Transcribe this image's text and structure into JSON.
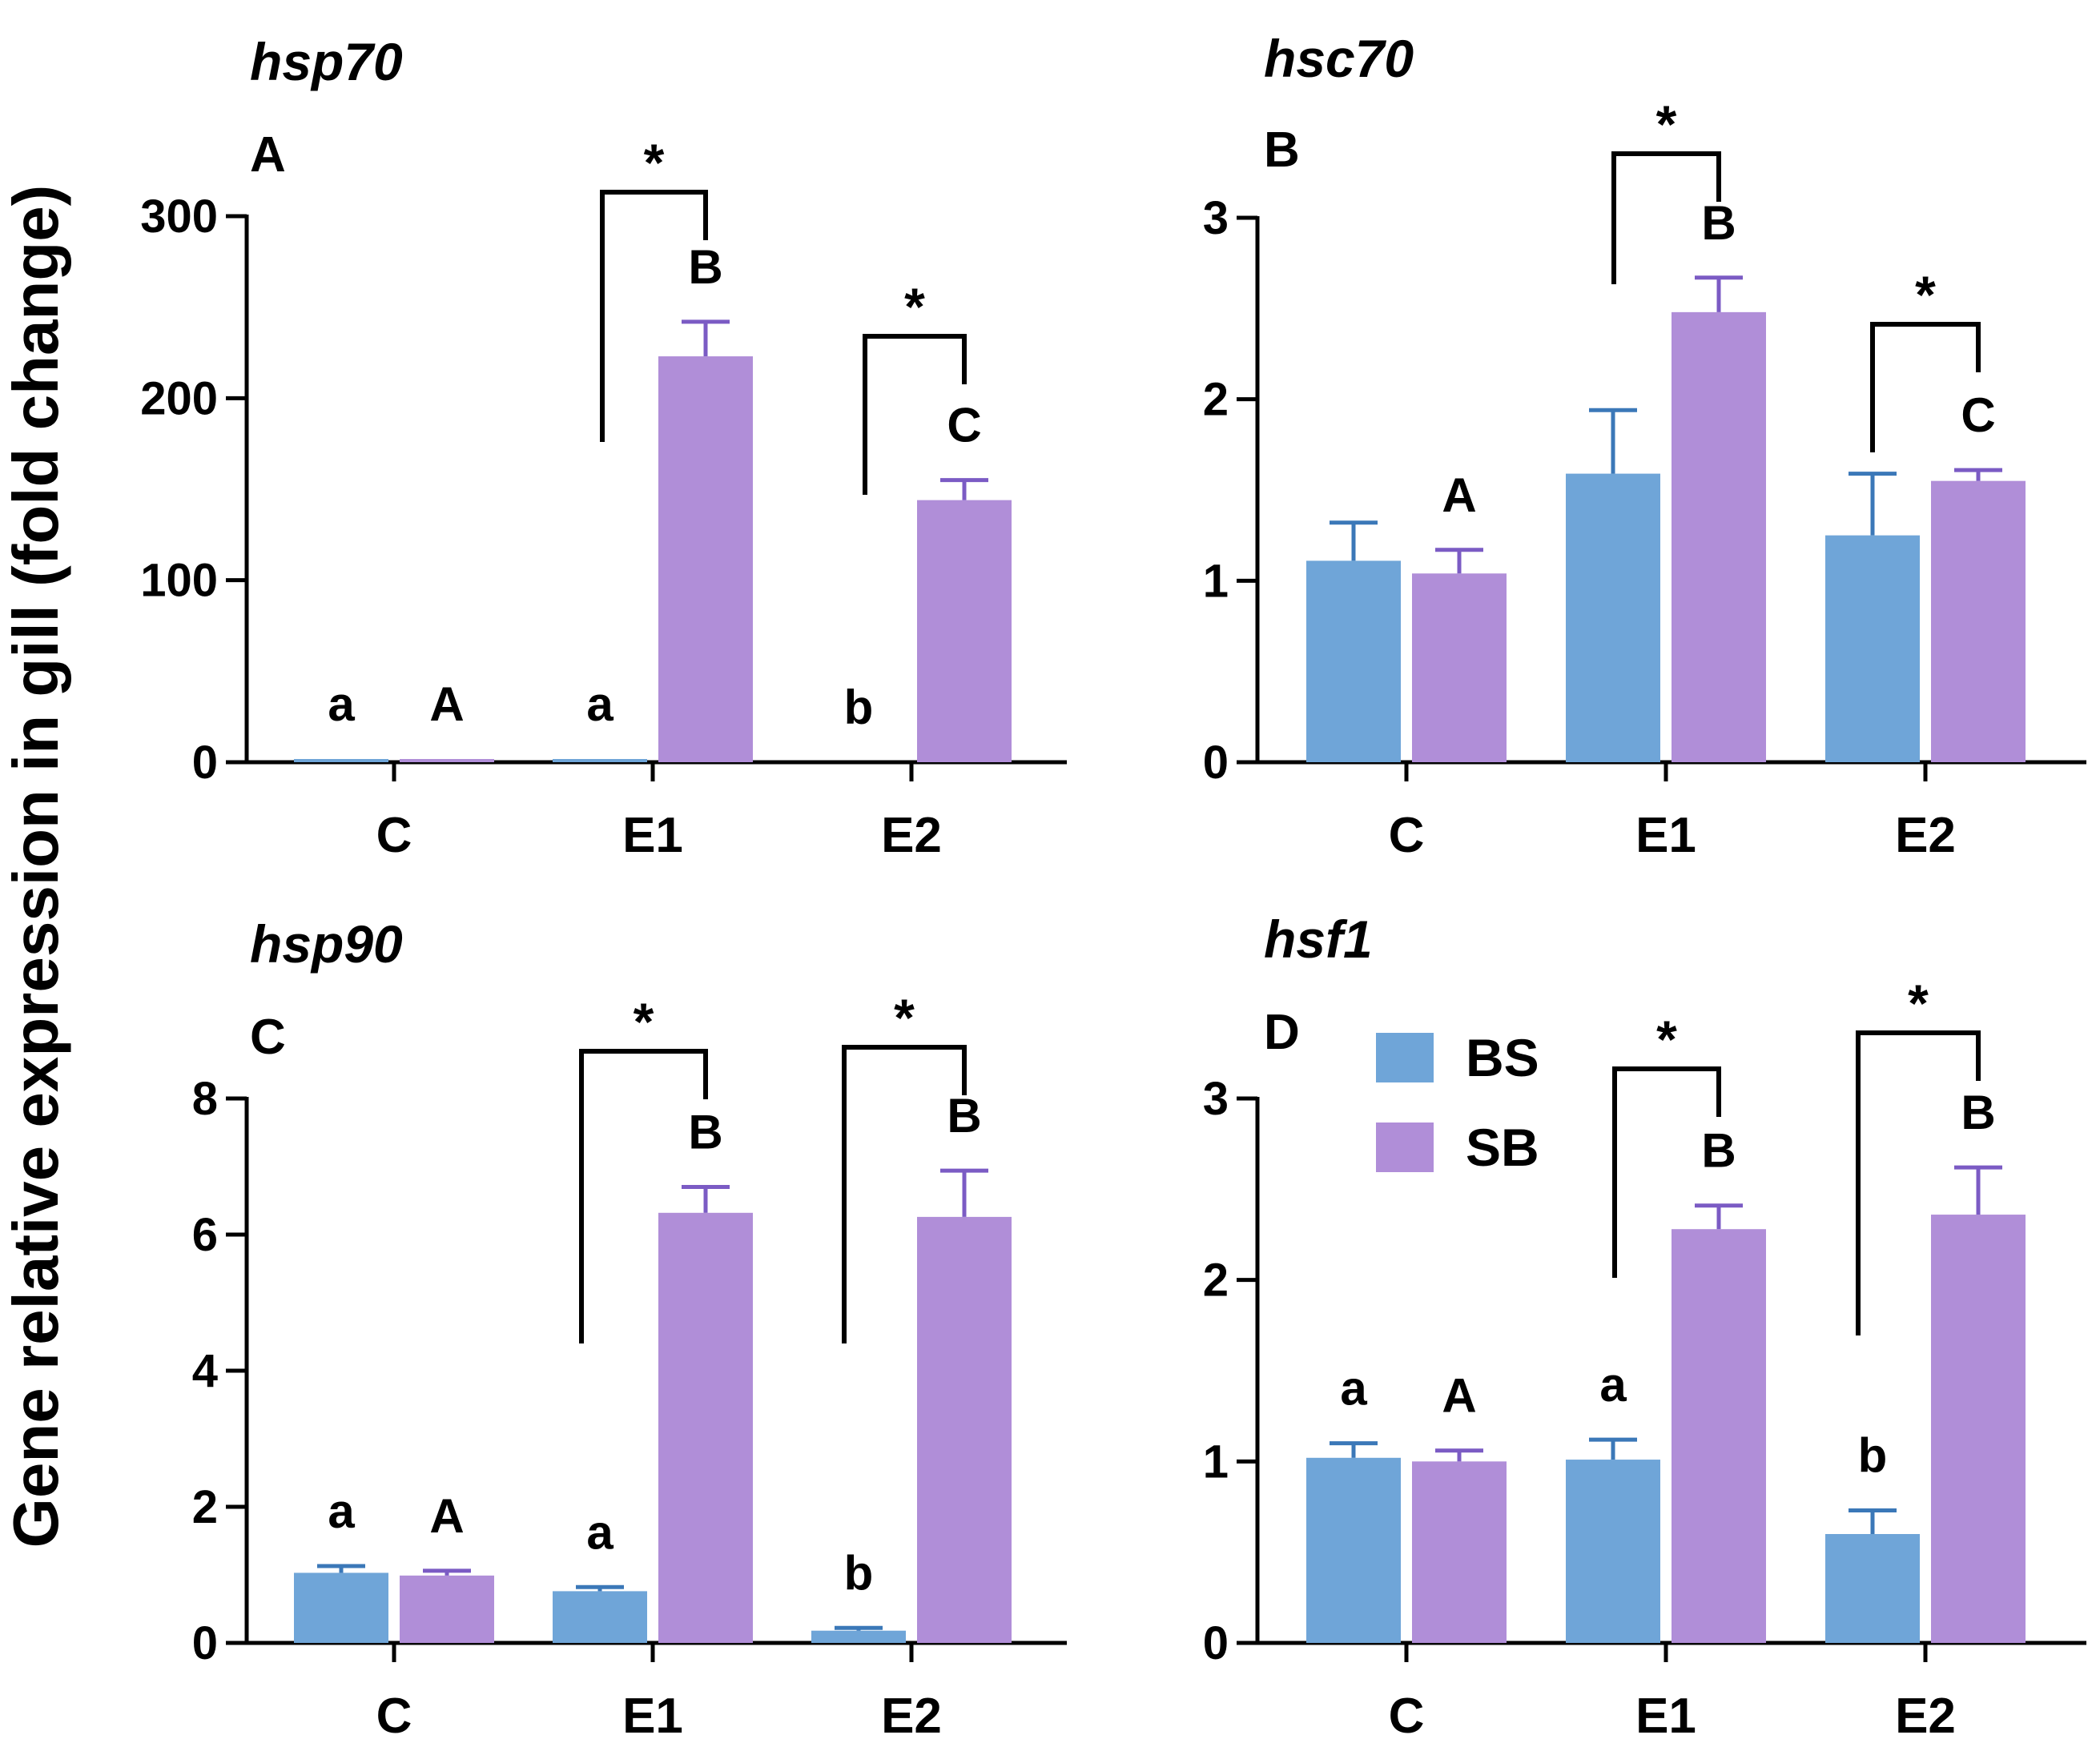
{
  "colors": {
    "BS": "#6fa5d8",
    "SB": "#b08ed8",
    "BS_err": "#3b78b8",
    "SB_err": "#7b5bc4"
  },
  "ylabel": "Gene relative expression in gill (fold change)",
  "legend": {
    "placement": "top-left of panel D",
    "items": [
      {
        "name": "BS",
        "color": "#6fa5d8"
      },
      {
        "name": "SB",
        "color": "#b08ed8"
      }
    ]
  },
  "chart_data": [
    {
      "type": "bar",
      "panel": "A",
      "title": "hsp70",
      "categories": [
        "C",
        "E1",
        "E2"
      ],
      "ylim": [
        0,
        300
      ],
      "yticks": [
        "0",
        "100",
        "200",
        "300"
      ],
      "series": [
        {
          "name": "BS",
          "values": [
            1,
            1,
            0
          ],
          "errors": [
            0.5,
            0.5,
            0
          ],
          "labels": [
            "a",
            "a",
            "b"
          ]
        },
        {
          "name": "SB",
          "values": [
            1,
            223,
            144
          ],
          "errors": [
            0.5,
            19,
            11
          ],
          "labels": [
            "A",
            "B",
            "C"
          ]
        }
      ],
      "significance": [
        {
          "category": "E1",
          "mark": "*"
        },
        {
          "category": "E2",
          "mark": "*"
        }
      ]
    },
    {
      "type": "bar",
      "panel": "B",
      "title": "hsc70",
      "categories": [
        "C",
        "E1",
        "E2"
      ],
      "ylim": [
        0,
        3
      ],
      "yticks": [
        "0",
        "1",
        "2",
        "3"
      ],
      "series": [
        {
          "name": "BS",
          "values": [
            1.11,
            1.59,
            1.25
          ],
          "errors": [
            0.21,
            0.35,
            0.34
          ],
          "labels": [
            "",
            "",
            ""
          ]
        },
        {
          "name": "SB",
          "values": [
            1.04,
            2.48,
            1.55
          ],
          "errors": [
            0.13,
            0.19,
            0.06
          ],
          "labels": [
            "A",
            "B",
            "C"
          ]
        }
      ],
      "significance": [
        {
          "category": "E1",
          "mark": "*"
        },
        {
          "category": "E2",
          "mark": "*"
        }
      ]
    },
    {
      "type": "bar",
      "panel": "C",
      "title": "hsp90",
      "categories": [
        "C",
        "E1",
        "E2"
      ],
      "ylim": [
        0,
        8
      ],
      "yticks": [
        "0",
        "2",
        "4",
        "6",
        "8"
      ],
      "series": [
        {
          "name": "BS",
          "values": [
            1.03,
            0.76,
            0.18
          ],
          "errors": [
            0.1,
            0.06,
            0.04
          ],
          "labels": [
            "a",
            "a",
            "b"
          ]
        },
        {
          "name": "SB",
          "values": [
            0.99,
            6.32,
            6.26
          ],
          "errors": [
            0.07,
            0.38,
            0.68
          ],
          "labels": [
            "A",
            "B",
            "B"
          ]
        }
      ],
      "significance": [
        {
          "category": "E1",
          "mark": "*"
        },
        {
          "category": "E2",
          "mark": "*"
        }
      ]
    },
    {
      "type": "bar",
      "panel": "D",
      "title": "hsf1",
      "categories": [
        "C",
        "E1",
        "E2"
      ],
      "ylim": [
        0,
        3
      ],
      "yticks": [
        "0",
        "1",
        "2",
        "3"
      ],
      "series": [
        {
          "name": "BS",
          "values": [
            1.02,
            1.01,
            0.6
          ],
          "errors": [
            0.08,
            0.11,
            0.13
          ],
          "labels": [
            "a",
            "a",
            "b"
          ]
        },
        {
          "name": "SB",
          "values": [
            1.0,
            2.28,
            2.36
          ],
          "errors": [
            0.06,
            0.13,
            0.26
          ],
          "labels": [
            "A",
            "B",
            "B"
          ]
        }
      ],
      "significance": [
        {
          "category": "E1",
          "mark": "*"
        },
        {
          "category": "E2",
          "mark": "*"
        }
      ]
    }
  ]
}
